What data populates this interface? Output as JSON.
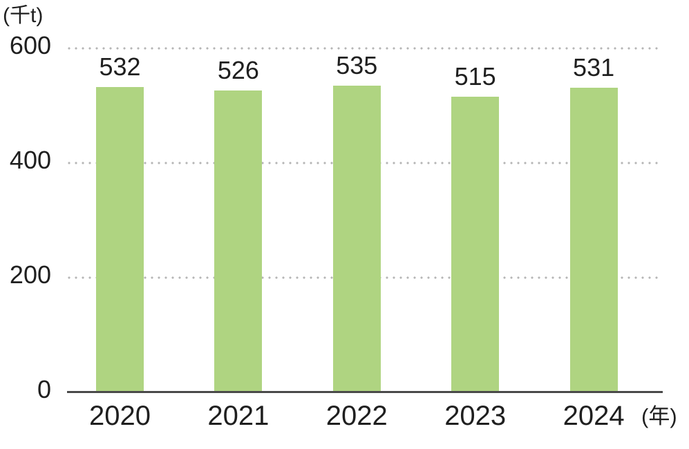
{
  "chart_data": {
    "type": "bar",
    "title": "",
    "categories": [
      "2020",
      "2021",
      "2022",
      "2023",
      "2024"
    ],
    "values": [
      532,
      526,
      535,
      515,
      531
    ],
    "ylabel": "(千t)",
    "xlabel": "(年)",
    "ylim": [
      0,
      600
    ],
    "yticks": [
      0,
      200,
      400,
      600
    ],
    "ytick_labels": [
      "0",
      "200",
      "400",
      "600"
    ],
    "grid": "horizontal-dotted",
    "legend_position": "none",
    "data_labels": "above-bars",
    "bar_color": "#afd481"
  },
  "colors": {
    "bar": "#afd481",
    "grid_dot": "#b5b5b5",
    "axis_line": "#4a4a4a",
    "text": "#1f1f1f",
    "background": "#ffffff"
  }
}
